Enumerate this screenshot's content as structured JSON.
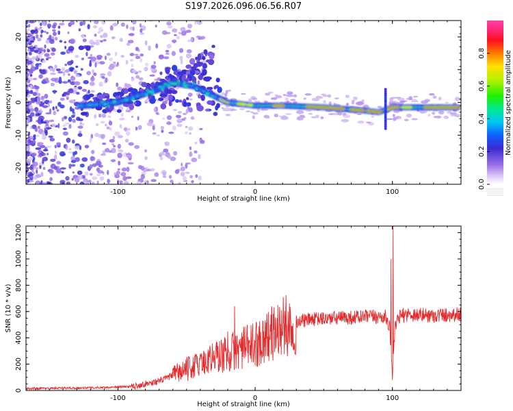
{
  "title": "S197.2026.096.06.56.R07",
  "chart_data": [
    {
      "type": "heatmap",
      "xlabel": "Height of straight line (km)",
      "ylabel": "Frequency (Hz)",
      "xlim": [
        -167,
        150
      ],
      "ylim": [
        -25,
        25
      ],
      "xticks": [
        -100,
        0,
        100
      ],
      "yticks": [
        -20,
        -10,
        0,
        10,
        20
      ],
      "colorbar": {
        "label": "Normalized spectral amplitude",
        "range": [
          0,
          1
        ],
        "ticks": [
          0.0,
          0.2,
          0.4,
          0.6,
          0.8
        ]
      },
      "ridge": {
        "description_points": [
          [
            -125,
            -1
          ],
          [
            -100,
            0
          ],
          [
            -85,
            2
          ],
          [
            -70,
            4
          ],
          [
            -60,
            6
          ],
          [
            -45,
            5
          ],
          [
            -30,
            2
          ],
          [
            -20,
            0
          ],
          [
            0,
            -1
          ],
          [
            20,
            -1
          ],
          [
            50,
            -1.5
          ],
          [
            80,
            -2.5
          ],
          [
            90,
            -3
          ],
          [
            100,
            -1.5
          ],
          [
            130,
            -1.5
          ],
          [
            148,
            -1.5
          ]
        ]
      }
    },
    {
      "type": "line",
      "xlabel": "Height of straight line (km)",
      "ylabel": "SNR (10 * v/v)",
      "xlim": [
        -167,
        150
      ],
      "ylim": [
        0,
        1250
      ],
      "xticks": [
        -100,
        0,
        100
      ],
      "yticks": [
        0,
        200,
        400,
        600,
        800,
        1000,
        1200
      ],
      "color": "#e8292b",
      "baseline": {
        "x": [
          -167,
          -120,
          -90,
          -70,
          -55,
          -40,
          -30,
          -20,
          -10,
          0,
          10,
          20,
          30,
          40,
          60,
          80,
          90,
          95,
          98,
          100,
          102,
          105,
          110,
          130,
          150
        ],
        "y": [
          15,
          20,
          30,
          70,
          140,
          200,
          250,
          280,
          320,
          350,
          420,
          480,
          520,
          540,
          550,
          560,
          560,
          560,
          480,
          130,
          480,
          560,
          580,
          570,
          580
        ]
      },
      "spikes": [
        {
          "x": -15,
          "y": 640
        },
        {
          "x": -20,
          "y": 450
        },
        {
          "x": -33,
          "y": 340
        },
        {
          "x": -40,
          "y": 280
        },
        {
          "x": 99,
          "y": 1000
        },
        {
          "x": 100.5,
          "y": 1250
        },
        {
          "x": 100,
          "y": 80
        }
      ]
    }
  ]
}
